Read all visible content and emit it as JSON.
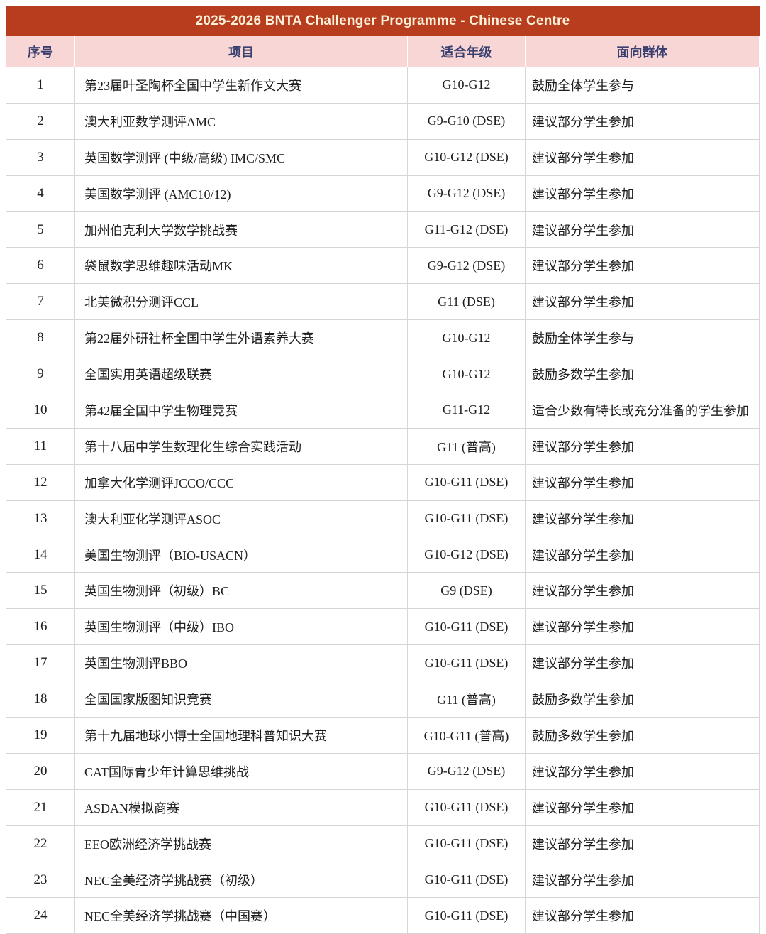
{
  "title": "2025-2026 BNTA Challenger Programme - Chinese Centre",
  "colors": {
    "title_bg": "#b83c1e",
    "title_text": "#faf0d8",
    "header_bg": "#f8d6d6",
    "header_text": "#39406e",
    "body_text": "#1d1d1d",
    "grid_border": "#d6d6d6"
  },
  "table": {
    "headers": [
      "序号",
      "项目",
      "适合年级",
      "面向群体"
    ],
    "rows": [
      {
        "no": "1",
        "project": "第23届叶圣陶杯全国中学生新作文大赛",
        "grade": "G10-G12",
        "group": "鼓励全体学生参与"
      },
      {
        "no": "2",
        "project": "澳大利亚数学测评AMC",
        "grade": "G9-G10 (DSE)",
        "group": "建议部分学生参加"
      },
      {
        "no": "3",
        "project": "英国数学测评 (中级/高级) IMC/SMC",
        "grade": "G10-G12 (DSE)",
        "group": "建议部分学生参加"
      },
      {
        "no": "4",
        "project": "美国数学测评 (AMC10/12)",
        "grade": "G9-G12 (DSE)",
        "group": "建议部分学生参加"
      },
      {
        "no": "5",
        "project": "加州伯克利大学数学挑战赛",
        "grade": "G11-G12 (DSE)",
        "group": "建议部分学生参加"
      },
      {
        "no": "6",
        "project": "袋鼠数学思维趣味活动MK",
        "grade": "G9-G12 (DSE)",
        "group": "建议部分学生参加"
      },
      {
        "no": "7",
        "project": "北美微积分测评CCL",
        "grade": "G11 (DSE)",
        "group": "建议部分学生参加"
      },
      {
        "no": "8",
        "project": "第22届外研社杯全国中学生外语素养大赛",
        "grade": "G10-G12",
        "group": "鼓励全体学生参与"
      },
      {
        "no": "9",
        "project": "全国实用英语超级联赛",
        "grade": "G10-G12",
        "group": "鼓励多数学生参加"
      },
      {
        "no": "10",
        "project": "第42届全国中学生物理竞赛",
        "grade": "G11-G12",
        "group": "适合少数有特长或充分准备的学生参加"
      },
      {
        "no": "11",
        "project": "第十八届中学生数理化生综合实践活动",
        "grade": "G11 (普高)",
        "group": "建议部分学生参加"
      },
      {
        "no": "12",
        "project": "加拿大化学测评JCCO/CCC",
        "grade": "G10-G11 (DSE)",
        "group": "建议部分学生参加"
      },
      {
        "no": "13",
        "project": "澳大利亚化学测评ASOC",
        "grade": "G10-G11 (DSE)",
        "group": "建议部分学生参加"
      },
      {
        "no": "14",
        "project": "美国生物测评（BIO-USACN）",
        "grade": "G10-G12 (DSE)",
        "group": "建议部分学生参加"
      },
      {
        "no": "15",
        "project": "英国生物测评（初级）BC",
        "grade": "G9 (DSE)",
        "group": "建议部分学生参加"
      },
      {
        "no": "16",
        "project": "英国生物测评（中级）IBO",
        "grade": "G10-G11 (DSE)",
        "group": "建议部分学生参加"
      },
      {
        "no": "17",
        "project": "英国生物测评BBO",
        "grade": "G10-G11 (DSE)",
        "group": "建议部分学生参加"
      },
      {
        "no": "18",
        "project": "全国国家版图知识竞赛",
        "grade": "G11 (普高)",
        "group": "鼓励多数学生参加"
      },
      {
        "no": "19",
        "project": "第十九届地球小博士全国地理科普知识大赛",
        "grade": "G10-G11 (普高)",
        "group": "鼓励多数学生参加"
      },
      {
        "no": "20",
        "project": "CAT国际青少年计算思维挑战",
        "grade": "G9-G12 (DSE)",
        "group": "建议部分学生参加"
      },
      {
        "no": "21",
        "project": "ASDAN模拟商赛",
        "grade": "G10-G11 (DSE)",
        "group": "建议部分学生参加"
      },
      {
        "no": "22",
        "project": "EEO欧洲经济学挑战赛",
        "grade": "G10-G11 (DSE)",
        "group": "建议部分学生参加"
      },
      {
        "no": "23",
        "project": "NEC全美经济学挑战赛（初级）",
        "grade": "G10-G11 (DSE)",
        "group": "建议部分学生参加"
      },
      {
        "no": "24",
        "project": "NEC全美经济学挑战赛（中国赛）",
        "grade": "G10-G11 (DSE)",
        "group": "建议部分学生参加"
      }
    ]
  }
}
